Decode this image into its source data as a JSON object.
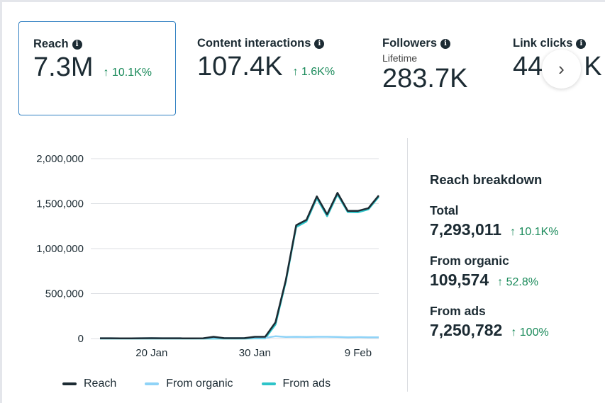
{
  "metrics": [
    {
      "title": "Reach",
      "value": "7.3M",
      "change": "↑ 10.1K%",
      "selected": true
    },
    {
      "title": "Content interactions",
      "value": "107.4K",
      "change": "↑ 1.6K%"
    },
    {
      "title": "Followers",
      "subtitle": "Lifetime",
      "value": "283.7K"
    },
    {
      "title": "Link clicks",
      "value_visible_start": "44",
      "value_visible_end": "K"
    }
  ],
  "next_button": "›",
  "breakdown": {
    "title": "Reach breakdown",
    "rows": [
      {
        "label": "Total",
        "value": "7,293,011",
        "change": "↑ 10.1K%"
      },
      {
        "label": "From organic",
        "value": "109,574",
        "change": "↑ 52.8%"
      },
      {
        "label": "From ads",
        "value": "7,250,782",
        "change": "↑ 100%"
      }
    ]
  },
  "chart_data": {
    "type": "line",
    "x": [
      "15 Jan",
      "16 Jan",
      "17 Jan",
      "18 Jan",
      "19 Jan",
      "20 Jan",
      "21 Jan",
      "22 Jan",
      "23 Jan",
      "24 Jan",
      "25 Jan",
      "26 Jan",
      "27 Jan",
      "28 Jan",
      "29 Jan",
      "30 Jan",
      "31 Jan",
      "1 Feb",
      "2 Feb",
      "3 Feb",
      "4 Feb",
      "5 Feb",
      "6 Feb",
      "7 Feb",
      "8 Feb",
      "9 Feb",
      "10 Feb",
      "11 Feb"
    ],
    "xticks": [
      "20 Jan",
      "30 Jan",
      "9 Feb"
    ],
    "yticks": [
      "0",
      "500,000",
      "1,000,000",
      "1,500,000",
      "2,000,000"
    ],
    "ylim": [
      0,
      2000000
    ],
    "grid": true,
    "legend_position": "bottom",
    "series": [
      {
        "name": "Reach",
        "color": "#1c2b33",
        "values": [
          3000,
          3000,
          2000,
          2000,
          3000,
          4000,
          3000,
          3000,
          2000,
          2000,
          3000,
          20000,
          5000,
          4000,
          5000,
          20000,
          20000,
          180000,
          650000,
          1260000,
          1320000,
          1580000,
          1380000,
          1620000,
          1420000,
          1420000,
          1450000,
          1590000
        ]
      },
      {
        "name": "From organic",
        "color": "#8fd3f7",
        "values": [
          3000,
          3000,
          2000,
          2000,
          3000,
          4000,
          3000,
          3000,
          2000,
          2000,
          3000,
          8000,
          5000,
          4000,
          5000,
          8000,
          8000,
          25000,
          18000,
          20000,
          18000,
          20000,
          20000,
          18000,
          14000,
          16000,
          14000,
          14000
        ]
      },
      {
        "name": "From ads",
        "color": "#2ec4c9",
        "values": [
          0,
          0,
          0,
          0,
          0,
          0,
          0,
          0,
          0,
          0,
          0,
          0,
          0,
          0,
          0,
          2000,
          2000,
          155000,
          632000,
          1240000,
          1302000,
          1560000,
          1360000,
          1602000,
          1406000,
          1404000,
          1436000,
          1576000
        ]
      }
    ]
  }
}
